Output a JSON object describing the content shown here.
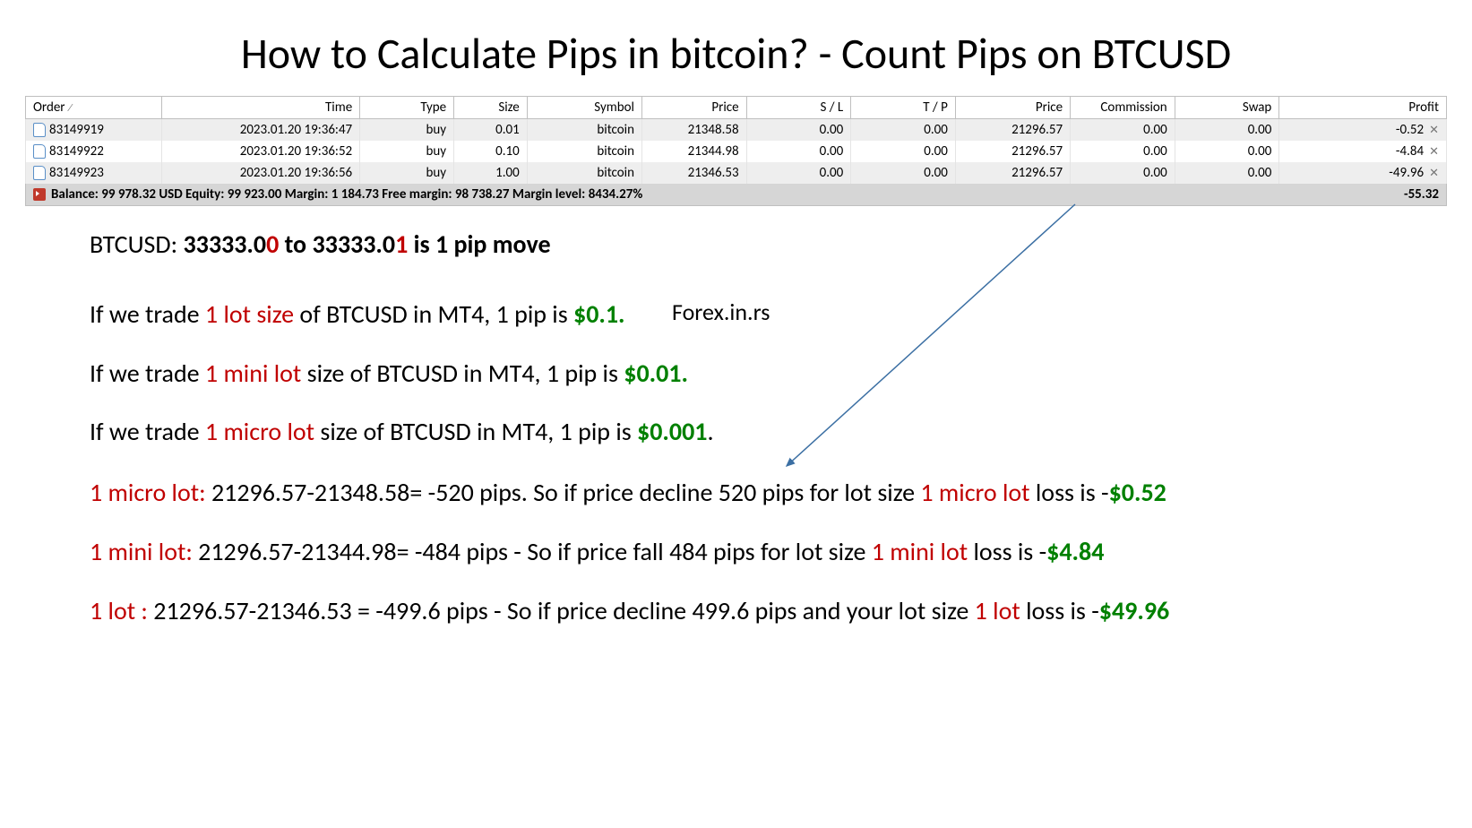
{
  "title": "How to Calculate Pips in bitcoin? - Count Pips on BTCUSD",
  "table": {
    "headers": {
      "order": "Order",
      "time": "Time",
      "type": "Type",
      "size": "Size",
      "symbol": "Symbol",
      "price": "Price",
      "sl": "S / L",
      "tp": "T / P",
      "price2": "Price",
      "commission": "Commission",
      "swap": "Swap",
      "profit": "Profit"
    },
    "rows": [
      {
        "order": "83149919",
        "time": "2023.01.20 19:36:47",
        "type": "buy",
        "size": "0.01",
        "symbol": "bitcoin",
        "price": "21348.58",
        "sl": "0.00",
        "tp": "0.00",
        "price2": "21296.57",
        "commission": "0.00",
        "swap": "0.00",
        "profit": "-0.52"
      },
      {
        "order": "83149922",
        "time": "2023.01.20 19:36:52",
        "type": "buy",
        "size": "0.10",
        "symbol": "bitcoin",
        "price": "21344.98",
        "sl": "0.00",
        "tp": "0.00",
        "price2": "21296.57",
        "commission": "0.00",
        "swap": "0.00",
        "profit": "-4.84"
      },
      {
        "order": "83149923",
        "time": "2023.01.20 19:36:56",
        "type": "buy",
        "size": "1.00",
        "symbol": "bitcoin",
        "price": "21346.53",
        "sl": "0.00",
        "tp": "0.00",
        "price2": "21296.57",
        "commission": "0.00",
        "swap": "0.00",
        "profit": "-49.96"
      }
    ],
    "summary": {
      "text": "Balance: 99 978.32 USD  Equity: 99 923.00  Margin: 1 184.73  Free margin: 98 738.27  Margin level: 8434.27%",
      "total": "-55.32"
    }
  },
  "pip_def": {
    "prefix": "BTCUSD:  ",
    "a": "33333.0",
    "a_red": "0",
    "mid": " to 33333.0",
    "b_red": "1",
    "suffix": " is 1 pip move"
  },
  "watermark": "Forex.in.rs",
  "rules": [
    {
      "pre": "If we trade ",
      "red": "1 lot size",
      "mid": " of BTCUSD in MT4, 1 pip is ",
      "green": "$0.1.",
      "post": ""
    },
    {
      "pre": "If we trade ",
      "red": "1 mini lot",
      "mid": " size of BTCUSD in MT4, 1 pip is ",
      "green": "$0.01.",
      "post": ""
    },
    {
      "pre": "If we trade ",
      "red": "1 micro lot",
      "mid": " size of BTCUSD in MT4, 1 pip is ",
      "green": "$0.001",
      "post": "."
    }
  ],
  "examples": [
    {
      "red1": "1 micro lot:",
      "mid": " 21296.57-21348.58=  -520 pips.  So if price decline 520 pips for lot size ",
      "red2": "1 micro lot",
      "mid2": " loss is -",
      "green": "$0.52"
    },
    {
      "red1": "1 mini lot:",
      "mid": "  21296.57-21344.98= -484  pips - So if price fall 484 pips for lot size ",
      "red2": "1 mini  lot",
      "mid2": " loss is -",
      "green": "$4.84"
    },
    {
      "red1": "1 lot :",
      "mid": " 21296.57-21346.53 = -499.6 pips - So if price decline 499.6 pips and your lot size ",
      "red2": "1 lot",
      "mid2": " loss is -",
      "green": "$49.96"
    }
  ],
  "colors": {
    "red": "#c00000",
    "green": "#008000",
    "row_alt": "#eeeeee",
    "summary_bg": "#d6d6d6",
    "border": "#bfbfbf",
    "arrow": "#3b6fa3"
  }
}
